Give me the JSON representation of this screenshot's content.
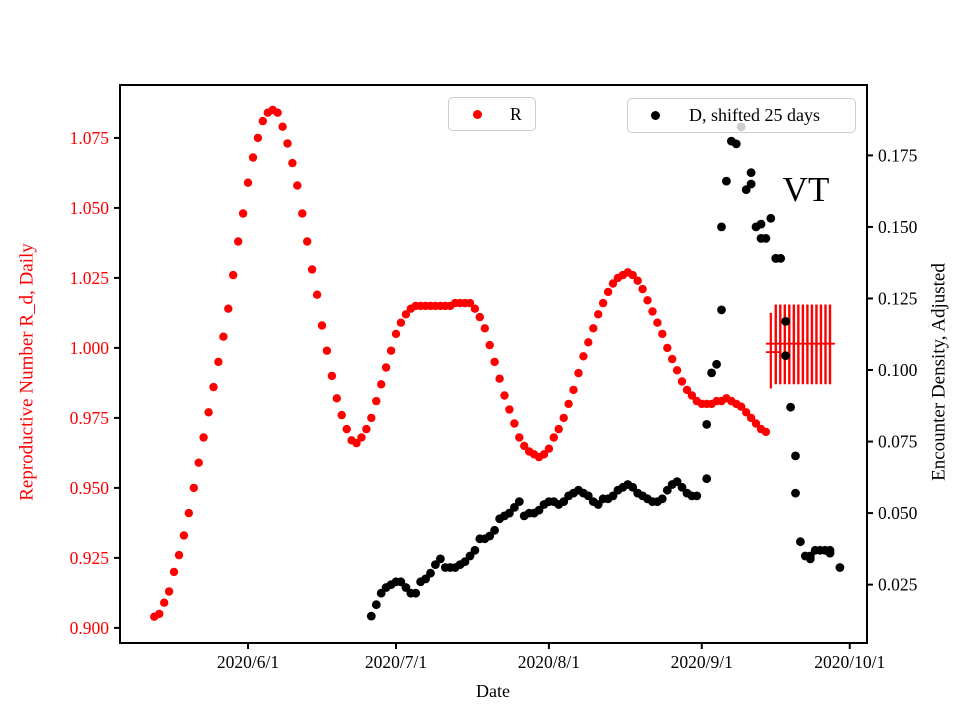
{
  "figure": {
    "annotation_vt": "VT",
    "colors": {
      "r_series": "#ff0000",
      "d_series": "#000000",
      "axis": "#000000",
      "left_tick_label": "#ff0000",
      "legend_border": "#cccccc"
    }
  },
  "chart_data": {
    "type": "scatter",
    "title": "",
    "xlabel": "Date",
    "ylabel_left": "Reproductive Number R_d, Daily",
    "ylabel_right": "Encounter Density, Adjusted",
    "x_domain": [
      "2020-05-06T01:00:00Z",
      "2020-10-04T12:00:00Z"
    ],
    "ylim_left": [
      0.8946,
      1.0939
    ],
    "ylim_right": [
      0.0046,
      0.1996
    ],
    "grid": false,
    "legend_position": "top",
    "x_ticks": [
      {
        "date": "2020-06-01",
        "label": "2020/6/1"
      },
      {
        "date": "2020-07-01",
        "label": "2020/7/1"
      },
      {
        "date": "2020-08-01",
        "label": "2020/8/1"
      },
      {
        "date": "2020-09-01",
        "label": "2020/9/1"
      },
      {
        "date": "2020-10-01",
        "label": "2020/10/1"
      }
    ],
    "y_ticks_left": [
      1.075,
      1.05,
      1.025,
      1.0,
      0.975,
      0.95,
      0.925,
      0.9
    ],
    "y_ticks_right": [
      0.175,
      0.15,
      0.125,
      0.1,
      0.075,
      0.05,
      0.025
    ],
    "series": [
      {
        "name": "R",
        "axis": "left",
        "color": "#ff0000",
        "marker_radius": 4.2,
        "points": [
          [
            "2020-05-13",
            0.904
          ],
          [
            "2020-05-14",
            0.905
          ],
          [
            "2020-05-15",
            0.909
          ],
          [
            "2020-05-16",
            0.913
          ],
          [
            "2020-05-17",
            0.92
          ],
          [
            "2020-05-18",
            0.926
          ],
          [
            "2020-05-19",
            0.933
          ],
          [
            "2020-05-20",
            0.941
          ],
          [
            "2020-05-21",
            0.95
          ],
          [
            "2020-05-22",
            0.959
          ],
          [
            "2020-05-23",
            0.968
          ],
          [
            "2020-05-24",
            0.977
          ],
          [
            "2020-05-25",
            0.986
          ],
          [
            "2020-05-26",
            0.995
          ],
          [
            "2020-05-27",
            1.004
          ],
          [
            "2020-05-28",
            1.014
          ],
          [
            "2020-05-29",
            1.026
          ],
          [
            "2020-05-30",
            1.038
          ],
          [
            "2020-05-31",
            1.048
          ],
          [
            "2020-06-01",
            1.059
          ],
          [
            "2020-06-02",
            1.068
          ],
          [
            "2020-06-03",
            1.075
          ],
          [
            "2020-06-04",
            1.081
          ],
          [
            "2020-06-05",
            1.084
          ],
          [
            "2020-06-06",
            1.085
          ],
          [
            "2020-06-07",
            1.084
          ],
          [
            "2020-06-08",
            1.079
          ],
          [
            "2020-06-09",
            1.073
          ],
          [
            "2020-06-10",
            1.066
          ],
          [
            "2020-06-11",
            1.058
          ],
          [
            "2020-06-12",
            1.048
          ],
          [
            "2020-06-13",
            1.038
          ],
          [
            "2020-06-14",
            1.028
          ],
          [
            "2020-06-15",
            1.019
          ],
          [
            "2020-06-16",
            1.008
          ],
          [
            "2020-06-17",
            0.999
          ],
          [
            "2020-06-18",
            0.99
          ],
          [
            "2020-06-19",
            0.982
          ],
          [
            "2020-06-20",
            0.976
          ],
          [
            "2020-06-21",
            0.971
          ],
          [
            "2020-06-22",
            0.967
          ],
          [
            "2020-06-23",
            0.966
          ],
          [
            "2020-06-24",
            0.968
          ],
          [
            "2020-06-25",
            0.971
          ],
          [
            "2020-06-26",
            0.975
          ],
          [
            "2020-06-27",
            0.981
          ],
          [
            "2020-06-28",
            0.987
          ],
          [
            "2020-06-29",
            0.993
          ],
          [
            "2020-06-30",
            0.999
          ],
          [
            "2020-07-01",
            1.005
          ],
          [
            "2020-07-02",
            1.009
          ],
          [
            "2020-07-03",
            1.012
          ],
          [
            "2020-07-04",
            1.014
          ],
          [
            "2020-07-05",
            1.015
          ],
          [
            "2020-07-06",
            1.015
          ],
          [
            "2020-07-07",
            1.015
          ],
          [
            "2020-07-08",
            1.015
          ],
          [
            "2020-07-09",
            1.015
          ],
          [
            "2020-07-10",
            1.015
          ],
          [
            "2020-07-11",
            1.015
          ],
          [
            "2020-07-12",
            1.015
          ],
          [
            "2020-07-13",
            1.016
          ],
          [
            "2020-07-14",
            1.016
          ],
          [
            "2020-07-15",
            1.016
          ],
          [
            "2020-07-16",
            1.016
          ],
          [
            "2020-07-17",
            1.014
          ],
          [
            "2020-07-18",
            1.011
          ],
          [
            "2020-07-19",
            1.007
          ],
          [
            "2020-07-20",
            1.001
          ],
          [
            "2020-07-21",
            0.995
          ],
          [
            "2020-07-22",
            0.989
          ],
          [
            "2020-07-23",
            0.983
          ],
          [
            "2020-07-24",
            0.978
          ],
          [
            "2020-07-25",
            0.973
          ],
          [
            "2020-07-26",
            0.968
          ],
          [
            "2020-07-27",
            0.965
          ],
          [
            "2020-07-28",
            0.963
          ],
          [
            "2020-07-29",
            0.962
          ],
          [
            "2020-07-30",
            0.961
          ],
          [
            "2020-07-31",
            0.962
          ],
          [
            "2020-08-01",
            0.964
          ],
          [
            "2020-08-02",
            0.968
          ],
          [
            "2020-08-03",
            0.971
          ],
          [
            "2020-08-04",
            0.975
          ],
          [
            "2020-08-05",
            0.98
          ],
          [
            "2020-08-06",
            0.985
          ],
          [
            "2020-08-07",
            0.991
          ],
          [
            "2020-08-08",
            0.997
          ],
          [
            "2020-08-09",
            1.002
          ],
          [
            "2020-08-10",
            1.007
          ],
          [
            "2020-08-11",
            1.012
          ],
          [
            "2020-08-12",
            1.016
          ],
          [
            "2020-08-13",
            1.02
          ],
          [
            "2020-08-14",
            1.023
          ],
          [
            "2020-08-15",
            1.025
          ],
          [
            "2020-08-16",
            1.026
          ],
          [
            "2020-08-17",
            1.027
          ],
          [
            "2020-08-18",
            1.026
          ],
          [
            "2020-08-19",
            1.024
          ],
          [
            "2020-08-20",
            1.021
          ],
          [
            "2020-08-21",
            1.017
          ],
          [
            "2020-08-22",
            1.013
          ],
          [
            "2020-08-23",
            1.009
          ],
          [
            "2020-08-24",
            1.005
          ],
          [
            "2020-08-25",
            1.0
          ],
          [
            "2020-08-26",
            0.996
          ],
          [
            "2020-08-27",
            0.992
          ],
          [
            "2020-08-28",
            0.988
          ],
          [
            "2020-08-29",
            0.985
          ],
          [
            "2020-08-30",
            0.983
          ],
          [
            "2020-08-31",
            0.981
          ],
          [
            "2020-09-01",
            0.98
          ],
          [
            "2020-09-02",
            0.98
          ],
          [
            "2020-09-03",
            0.98
          ],
          [
            "2020-09-04",
            0.981
          ],
          [
            "2020-09-05",
            0.981
          ],
          [
            "2020-09-06",
            0.982
          ],
          [
            "2020-09-07",
            0.981
          ],
          [
            "2020-09-08",
            0.98
          ],
          [
            "2020-09-09",
            0.979
          ],
          [
            "2020-09-10",
            0.977
          ],
          [
            "2020-09-11",
            0.975
          ],
          [
            "2020-09-12",
            0.973
          ],
          [
            "2020-09-13",
            0.971
          ],
          [
            "2020-09-14",
            0.97
          ]
        ]
      },
      {
        "name": "D, shifted 25 days",
        "axis": "right",
        "color": "#000000",
        "marker_radius": 4.4,
        "points": [
          [
            "2020-06-26",
            0.014
          ],
          [
            "2020-06-27",
            0.018
          ],
          [
            "2020-06-28",
            0.022
          ],
          [
            "2020-06-29",
            0.024
          ],
          [
            "2020-06-30",
            0.025
          ],
          [
            "2020-07-01",
            0.026
          ],
          [
            "2020-07-02",
            0.026
          ],
          [
            "2020-07-03",
            0.024
          ],
          [
            "2020-07-04",
            0.022
          ],
          [
            "2020-07-05",
            0.022
          ],
          [
            "2020-07-06",
            0.026
          ],
          [
            "2020-07-07",
            0.027
          ],
          [
            "2020-07-08",
            0.029
          ],
          [
            "2020-07-09",
            0.032
          ],
          [
            "2020-07-10",
            0.034
          ],
          [
            "2020-07-11",
            0.031
          ],
          [
            "2020-07-12",
            0.031
          ],
          [
            "2020-07-13",
            0.031
          ],
          [
            "2020-07-14",
            0.032
          ],
          [
            "2020-07-15",
            0.033
          ],
          [
            "2020-07-16",
            0.035
          ],
          [
            "2020-07-17",
            0.037
          ],
          [
            "2020-07-18",
            0.041
          ],
          [
            "2020-07-19",
            0.041
          ],
          [
            "2020-07-20",
            0.042
          ],
          [
            "2020-07-21",
            0.044
          ],
          [
            "2020-07-22",
            0.048
          ],
          [
            "2020-07-23",
            0.049
          ],
          [
            "2020-07-24",
            0.05
          ],
          [
            "2020-07-25",
            0.052
          ],
          [
            "2020-07-26",
            0.054
          ],
          [
            "2020-07-27",
            0.049
          ],
          [
            "2020-07-28",
            0.05
          ],
          [
            "2020-07-29",
            0.05
          ],
          [
            "2020-07-30",
            0.051
          ],
          [
            "2020-07-31",
            0.053
          ],
          [
            "2020-08-01",
            0.054
          ],
          [
            "2020-08-02",
            0.054
          ],
          [
            "2020-08-03",
            0.053
          ],
          [
            "2020-08-04",
            0.054
          ],
          [
            "2020-08-05",
            0.056
          ],
          [
            "2020-08-06",
            0.057
          ],
          [
            "2020-08-07",
            0.058
          ],
          [
            "2020-08-08",
            0.057
          ],
          [
            "2020-08-09",
            0.056
          ],
          [
            "2020-08-10",
            0.054
          ],
          [
            "2020-08-11",
            0.053
          ],
          [
            "2020-08-12",
            0.055
          ],
          [
            "2020-08-13",
            0.055
          ],
          [
            "2020-08-14",
            0.056
          ],
          [
            "2020-08-15",
            0.058
          ],
          [
            "2020-08-16",
            0.059
          ],
          [
            "2020-08-17",
            0.06
          ],
          [
            "2020-08-18",
            0.059
          ],
          [
            "2020-08-19",
            0.057
          ],
          [
            "2020-08-20",
            0.056
          ],
          [
            "2020-08-21",
            0.055
          ],
          [
            "2020-08-22",
            0.054
          ],
          [
            "2020-08-23",
            0.054
          ],
          [
            "2020-08-24",
            0.055
          ],
          [
            "2020-08-25",
            0.058
          ],
          [
            "2020-08-26",
            0.06
          ],
          [
            "2020-08-27",
            0.061
          ],
          [
            "2020-08-28",
            0.059
          ],
          [
            "2020-08-29",
            0.057
          ],
          [
            "2020-08-30",
            0.056
          ],
          [
            "2020-08-31",
            0.056
          ],
          [
            "2020-09-02",
            0.062
          ],
          [
            "2020-09-02",
            0.081
          ],
          [
            "2020-09-03",
            0.099
          ],
          [
            "2020-09-04",
            0.102
          ],
          [
            "2020-09-05",
            0.121
          ],
          [
            "2020-09-05",
            0.15
          ],
          [
            "2020-09-06",
            0.166
          ],
          [
            "2020-09-07",
            0.18
          ],
          [
            "2020-09-08",
            0.179
          ],
          [
            "2020-09-09",
            0.185
          ],
          [
            "2020-09-10",
            0.163
          ],
          [
            "2020-09-11",
            0.169
          ],
          [
            "2020-09-11",
            0.165
          ],
          [
            "2020-09-12",
            0.15
          ],
          [
            "2020-09-13",
            0.151
          ],
          [
            "2020-09-13",
            0.146
          ],
          [
            "2020-09-14",
            0.146
          ],
          [
            "2020-09-15",
            0.153
          ],
          [
            "2020-09-16",
            0.139
          ],
          [
            "2020-09-16",
            0.139
          ],
          [
            "2020-09-17",
            0.139
          ],
          [
            "2020-09-18",
            0.117
          ],
          [
            "2020-09-18",
            0.105
          ],
          [
            "2020-09-19",
            0.087
          ],
          [
            "2020-09-20",
            0.07
          ],
          [
            "2020-09-20",
            0.057
          ],
          [
            "2020-09-21",
            0.04
          ],
          [
            "2020-09-22",
            0.035
          ],
          [
            "2020-09-23",
            0.034
          ],
          [
            "2020-09-23",
            0.035
          ],
          [
            "2020-09-24",
            0.037
          ],
          [
            "2020-09-25",
            0.037
          ],
          [
            "2020-09-26",
            0.037
          ],
          [
            "2020-09-27",
            0.037
          ],
          [
            "2020-09-27",
            0.036
          ],
          [
            "2020-09-29",
            0.031
          ]
        ]
      }
    ],
    "prediction": {
      "axis": "left",
      "color": "#ff0000",
      "hatch_x_start": "2020-09-16",
      "hatch_x_end": "2020-09-27",
      "hatch_count": 13,
      "hatch_top": 1.0155,
      "hatch_bottom": 0.987,
      "edge_line": {
        "date": "2020-09-15",
        "top": 1.0125,
        "bottom": 0.9855
      },
      "center_line": {
        "value": 1.0015,
        "x_start": "2020-09-14",
        "x_end": "2020-09-28"
      },
      "cap_line": {
        "value": 0.9985,
        "x_start": "2020-09-14",
        "x_end": "2020-09-17"
      }
    }
  }
}
